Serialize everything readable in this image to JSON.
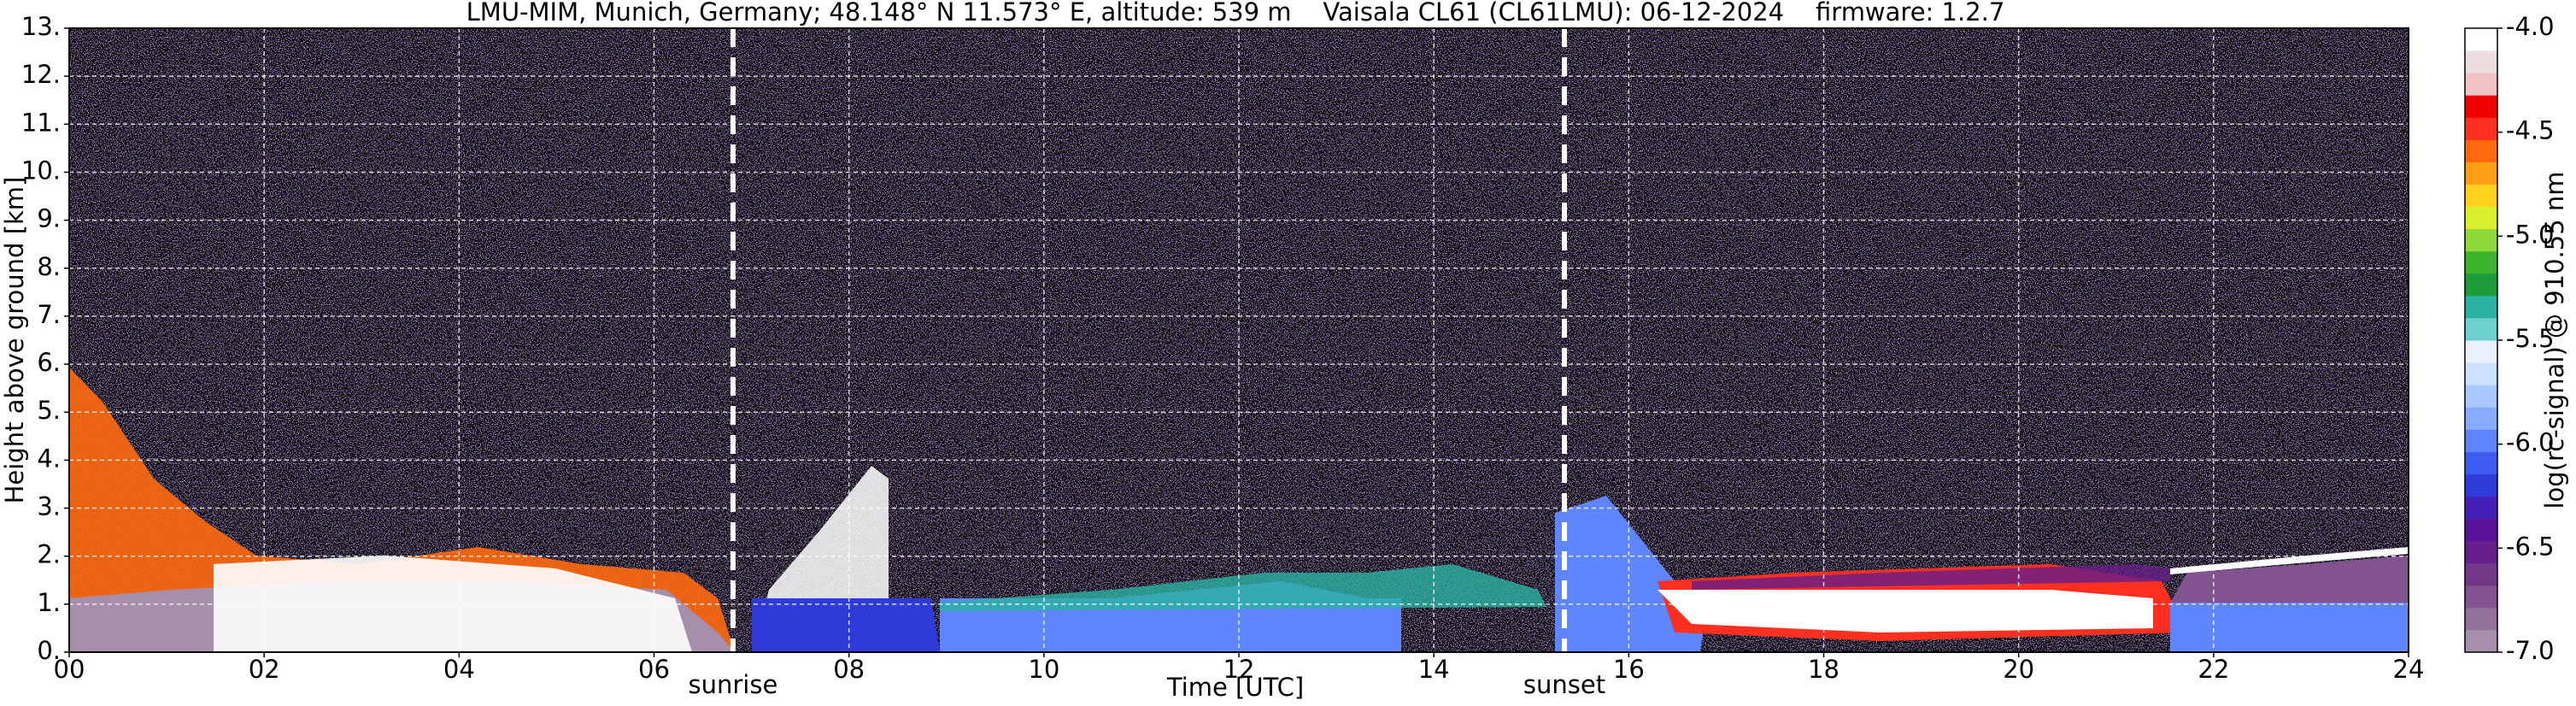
{
  "chart_data": {
    "type": "heatmap",
    "title": "LMU-MIM, Munich, Germany; 48.148° N 11.573° E, altitude: 539 m    Vaisala CL61 (CL61LMU): 06-12-2024    firmware: 1.2.7",
    "xlabel": "Time [UTC]",
    "ylabel": "Height above ground [km]",
    "xlim": [
      0,
      24
    ],
    "xticks": [
      {
        "value": 0,
        "label": "00"
      },
      {
        "value": 2,
        "label": "02"
      },
      {
        "value": 4,
        "label": "04"
      },
      {
        "value": 6,
        "label": "06"
      },
      {
        "value": 8,
        "label": "08"
      },
      10,
      12,
      14,
      16,
      18,
      20,
      22,
      24
    ],
    "ylim": [
      0,
      13
    ],
    "yticks": [
      {
        "value": 0,
        "label": "0."
      },
      {
        "value": 1,
        "label": "1."
      },
      {
        "value": 2,
        "label": "2."
      },
      {
        "value": 3,
        "label": "3."
      },
      {
        "value": 4,
        "label": "4."
      },
      {
        "value": 5,
        "label": "5."
      },
      {
        "value": 6,
        "label": "6."
      },
      {
        "value": 7,
        "label": "7."
      },
      {
        "value": 8,
        "label": "8."
      },
      {
        "value": 9,
        "label": "9."
      },
      {
        "value": 10,
        "label": "10."
      },
      {
        "value": 11,
        "label": "11."
      },
      {
        "value": 12,
        "label": "12."
      },
      {
        "value": 13,
        "label": "13."
      }
    ],
    "grid": true,
    "annotations": [
      {
        "text": "sunrise",
        "x": 6.81
      },
      {
        "text": "sunset",
        "x": 15.34
      }
    ],
    "colorbar": {
      "label": "log(rc-signal) @ 910.55 nm",
      "lim": [
        -7,
        -4
      ],
      "ticks": [
        {
          "value": -7,
          "label": "-7.0"
        },
        -6.5,
        {
          "value": -6,
          "label": "-6.0"
        },
        -5.5,
        {
          "value": -5,
          "label": "-5.0"
        },
        -4.5,
        {
          "value": -4,
          "label": "-4.0"
        }
      ],
      "colors": [
        "#a58fab",
        "#93729c",
        "#82538e",
        "#733787",
        "#661e8a",
        "#5a119a",
        "#4420b8",
        "#2f3bd8",
        "#3c5cf2",
        "#5f86ff",
        "#86abff",
        "#a9c8ff",
        "#cbe1ff",
        "#e8f1ff",
        "#6fd0d0",
        "#2ab3a2",
        "#1c9c3a",
        "#3cb52c",
        "#8fd83a",
        "#d9ef2e",
        "#ffd21f",
        "#ffa014",
        "#ff6a10",
        "#ff3020",
        "#f20000",
        "#f0c4c4",
        "#ecdede",
        "#ffffff"
      ]
    }
  }
}
